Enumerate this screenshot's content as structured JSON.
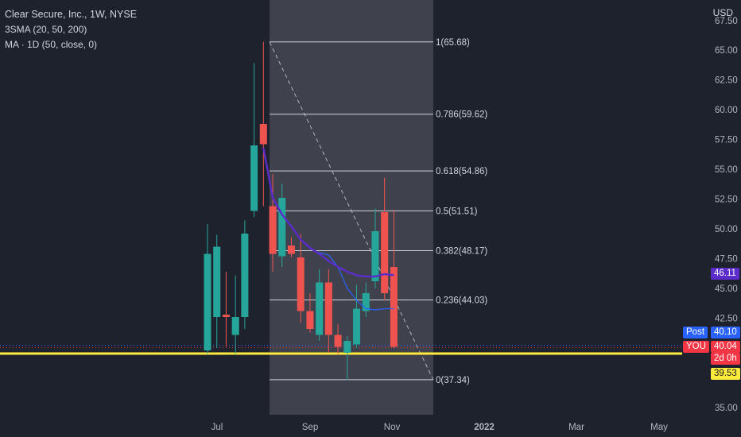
{
  "legend": {
    "title": "Clear Secure, Inc., 1W, NYSE",
    "indicator1": "3SMA (20, 50, 200)",
    "indicator2": "MA · 1D (50, close, 0)"
  },
  "price_axis": {
    "currency": "USD",
    "top_partial_label": "67.50",
    "labels": [
      "65.00",
      "62.50",
      "60.00",
      "57.50",
      "55.00",
      "52.50",
      "50.00",
      "47.50",
      "45.00",
      "42.50",
      "35.00"
    ]
  },
  "time_axis": {
    "labels": [
      "Jul",
      "Sep",
      "Nov",
      "2022",
      "Mar",
      "May"
    ]
  },
  "price_tags": {
    "sma": {
      "text": "46.11",
      "color": "#5b2cc9"
    },
    "post_label": {
      "text": "Post",
      "color": "#2962ff"
    },
    "post_price": {
      "text": "40.10",
      "color": "#2962ff"
    },
    "you_label": {
      "text": "YOU",
      "color": "#f23645"
    },
    "you_price": {
      "text": "40.04",
      "color": "#f23645"
    },
    "countdown": {
      "text": "2d 0h",
      "color": "#f23645"
    },
    "hline_price": {
      "text": "39.53",
      "color": "#ffeb3b"
    }
  },
  "fib_levels": [
    {
      "label": "1(65.68)",
      "value": 65.68
    },
    {
      "label": "0.786(59.62)",
      "value": 59.62
    },
    {
      "label": "0.618(54.86)",
      "value": 54.86
    },
    {
      "label": "0.5(51.51)",
      "value": 51.51
    },
    {
      "label": "0.382(48.17)",
      "value": 48.17
    },
    {
      "label": "0.236(44.03)",
      "value": 44.03
    },
    {
      "label": "0(37.34)",
      "value": 37.34
    }
  ],
  "chart_data": {
    "type": "candlestick",
    "title": "Clear Secure, Inc., 1W, NYSE",
    "y_range": [
      34.7,
      67.5
    ],
    "candles": [
      {
        "open": 39.8,
        "high": 50.4,
        "low": 39.5,
        "close": 47.9,
        "color": "teal"
      },
      {
        "open": 42.6,
        "high": 49.5,
        "low": 40.0,
        "close": 48.5,
        "color": "teal"
      },
      {
        "open": 42.8,
        "high": 46.4,
        "low": 40.1,
        "close": 42.6,
        "color": "red"
      },
      {
        "open": 41.1,
        "high": 46.1,
        "low": 39.5,
        "close": 42.6,
        "color": "teal"
      },
      {
        "open": 42.6,
        "high": 50.7,
        "low": 41.6,
        "close": 49.6,
        "color": "teal"
      },
      {
        "open": 51.5,
        "high": 63.9,
        "low": 51.0,
        "close": 57.0,
        "color": "teal"
      },
      {
        "open": 58.8,
        "high": 65.7,
        "low": 51.9,
        "close": 57.1,
        "color": "red"
      },
      {
        "open": 51.9,
        "high": 54.6,
        "low": 46.4,
        "close": 47.9,
        "color": "red"
      },
      {
        "open": 52.6,
        "high": 53.8,
        "low": 46.8,
        "close": 47.7,
        "color": "teal"
      },
      {
        "open": 48.6,
        "high": 49.3,
        "low": 47.6,
        "close": 47.9,
        "color": "red"
      },
      {
        "open": 47.6,
        "high": 49.6,
        "low": 42.1,
        "close": 43.1,
        "color": "red"
      },
      {
        "open": 43.1,
        "high": 44.6,
        "low": 41.3,
        "close": 41.6,
        "color": "red"
      },
      {
        "open": 41.1,
        "high": 46.6,
        "low": 40.6,
        "close": 45.5,
        "color": "teal"
      },
      {
        "open": 45.5,
        "high": 46.6,
        "low": 39.6,
        "close": 41.1,
        "color": "red"
      },
      {
        "open": 41.1,
        "high": 42.0,
        "low": 39.5,
        "close": 40.1,
        "color": "red"
      },
      {
        "open": 39.6,
        "high": 41.0,
        "low": 37.3,
        "close": 40.6,
        "color": "teal"
      },
      {
        "open": 40.3,
        "high": 45.3,
        "low": 40.0,
        "close": 43.3,
        "color": "teal"
      },
      {
        "open": 43.1,
        "high": 45.5,
        "low": 42.6,
        "close": 44.6,
        "color": "teal"
      },
      {
        "open": 45.6,
        "high": 51.7,
        "low": 45.0,
        "close": 49.8,
        "color": "teal"
      },
      {
        "open": 51.4,
        "high": 54.3,
        "low": 44.0,
        "close": 44.6,
        "color": "red"
      },
      {
        "open": 46.8,
        "high": 51.6,
        "low": 40.0,
        "close": 40.1,
        "color": "red"
      }
    ],
    "sma_20": [
      null,
      null,
      null,
      null,
      null,
      null,
      56.8,
      52.6,
      51.2,
      50.2,
      49.1,
      48.4,
      47.9,
      47.3,
      46.8,
      46.4,
      46.1,
      46.0,
      46.0,
      46.2,
      46.11
    ],
    "ma_1d_50": [
      null,
      null,
      null,
      null,
      null,
      null,
      null,
      null,
      null,
      null,
      null,
      48.3,
      48.0,
      47.8,
      46.8,
      45.0,
      44.0,
      43.3,
      43.2,
      43.3,
      43.3
    ],
    "horizontal_line": 39.53,
    "post_price": 40.1,
    "last_price": 40.04,
    "fib_retracement": {
      "high": 65.68,
      "low": 37.34
    }
  }
}
